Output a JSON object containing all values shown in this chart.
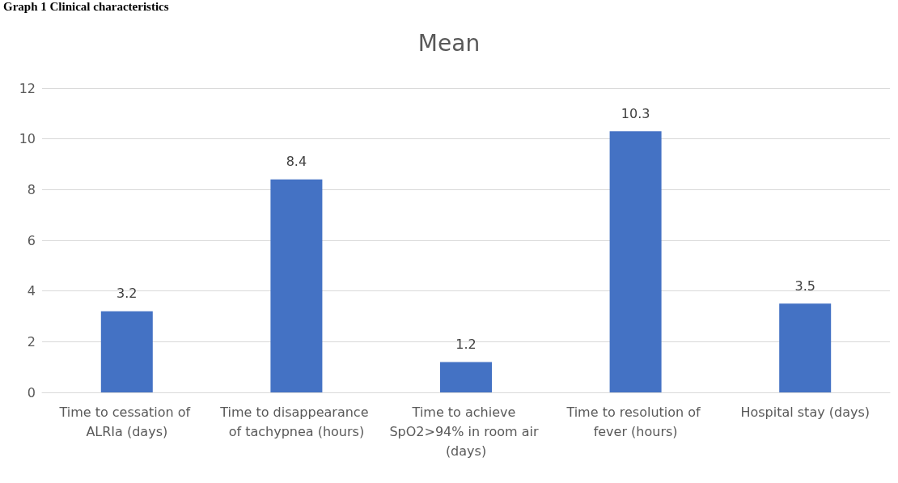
{
  "chart_data": {
    "type": "bar",
    "title": "Mean",
    "annotations": [
      "Graph 1 Clinical characteristics"
    ],
    "categories": [
      "Time to cessation of ALRIa (days)",
      "Time to disappearance of tachypnea (hours)",
      "Time to achieve SpO2>94% in room air (days)",
      "Time to resolution of fever (hours)",
      "Hospital stay (days)"
    ],
    "values": [
      3.2,
      8.4,
      1.2,
      10.3,
      3.5
    ],
    "color": "#4472c4",
    "ylim": [
      0,
      12
    ],
    "yticks": [
      0,
      2,
      4,
      6,
      8,
      10,
      12
    ],
    "grid": "y",
    "data_labels": true
  }
}
